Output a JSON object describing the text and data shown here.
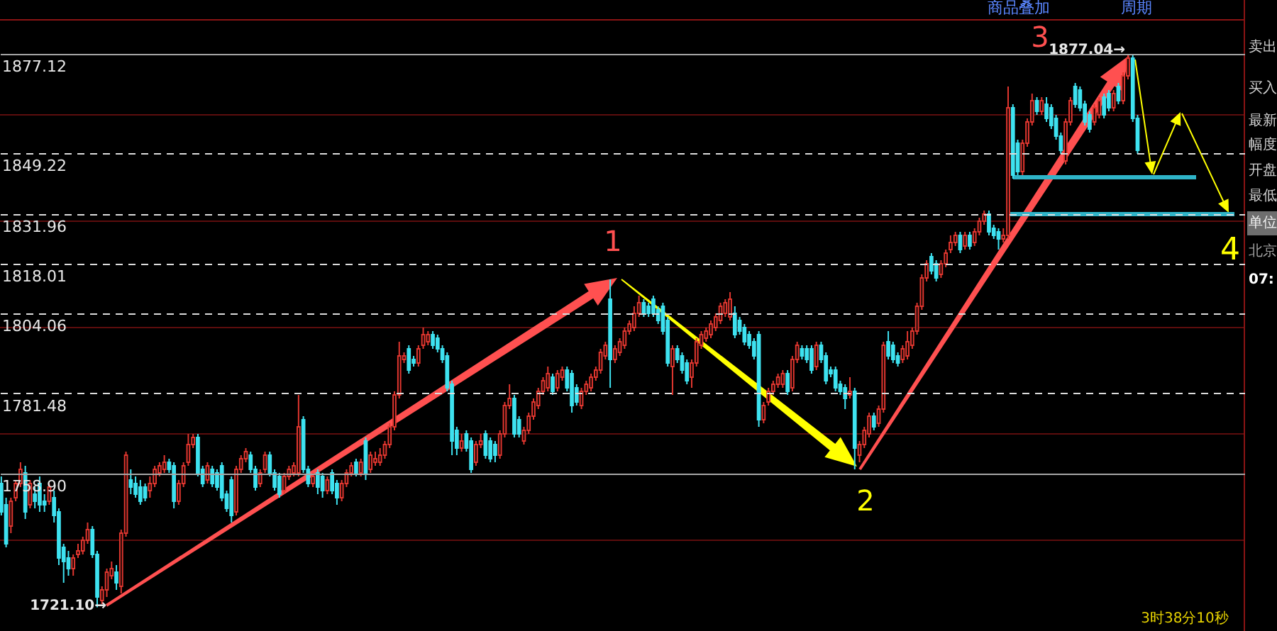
{
  "chart_data": {
    "type": "candlestick",
    "categories": [
      null,
      null,
      null,
      null,
      null,
      null,
      null,
      null,
      null,
      null,
      null,
      null,
      null,
      null,
      null,
      null,
      null,
      null,
      null,
      null,
      null,
      null,
      null,
      null,
      null,
      null,
      null,
      null,
      null,
      null,
      null,
      null,
      null,
      null,
      null,
      null,
      null,
      null,
      null,
      null,
      null,
      null,
      null,
      null,
      null,
      null,
      null,
      null,
      null,
      null,
      null,
      null,
      null,
      null,
      null,
      null,
      null,
      null,
      null,
      null,
      null,
      null,
      null,
      null,
      null,
      null,
      null,
      null,
      null,
      null,
      null,
      null,
      null,
      null,
      null,
      null,
      null,
      null,
      null,
      null,
      null,
      null,
      null,
      null,
      null,
      null,
      null,
      null,
      null,
      null,
      null,
      null,
      null,
      null,
      null,
      null,
      null,
      null,
      null,
      null,
      null,
      null,
      null,
      null,
      null,
      null,
      null,
      null,
      null,
      null,
      null,
      null,
      null,
      null,
      null,
      null,
      null,
      null,
      null,
      null,
      null,
      null,
      null,
      null,
      null,
      null,
      null,
      null,
      null,
      null,
      null,
      null,
      null,
      null,
      null,
      null,
      null,
      null,
      null,
      null,
      null,
      null,
      null,
      null,
      null,
      null,
      null,
      null,
      null,
      null,
      null,
      null,
      null,
      null,
      null,
      null,
      null,
      null,
      null,
      null,
      null,
      null,
      null,
      null,
      null,
      null,
      null,
      null,
      null,
      null,
      null,
      null,
      null,
      null,
      null,
      null,
      null,
      null,
      null,
      null,
      null,
      null,
      null,
      null,
      null,
      null,
      null,
      null,
      null,
      null,
      null,
      null,
      null,
      null,
      null,
      null,
      null,
      null,
      null,
      null,
      null,
      null,
      null,
      null,
      null,
      null,
      null,
      null,
      null,
      null,
      null,
      null,
      null,
      null,
      null,
      null,
      null,
      null,
      null,
      null,
      null,
      null,
      null,
      null,
      null,
      null,
      null,
      null,
      null,
      null,
      null,
      null,
      null,
      null,
      null,
      null,
      null,
      null,
      null,
      null,
      null,
      null,
      null,
      null,
      null,
      null,
      null,
      null,
      null,
      null,
      null,
      null,
      null,
      null,
      null,
      null,
      null,
      null,
      null,
      null
    ],
    "ohlc": [
      [
        1756,
        1758,
        1747,
        1748
      ],
      [
        1750,
        1752,
        1738,
        1739
      ],
      [
        1744,
        1752,
        1742,
        1751
      ],
      [
        1752,
        1757,
        1751,
        1756
      ],
      [
        1756,
        1762,
        1755,
        1760
      ],
      [
        1759,
        1761,
        1746,
        1748
      ],
      [
        1750,
        1757,
        1749,
        1756
      ],
      [
        1753,
        1755,
        1749,
        1751
      ],
      [
        1756,
        1758,
        1748,
        1750
      ],
      [
        1751,
        1753,
        1748,
        1750
      ],
      [
        1751,
        1756,
        1750,
        1755
      ],
      [
        1752,
        1754,
        1745,
        1747
      ],
      [
        1748,
        1749,
        1733,
        1735
      ],
      [
        1738,
        1739,
        1728,
        1734
      ],
      [
        1735,
        1737,
        1730,
        1732
      ],
      [
        1732,
        1736,
        1730,
        1735
      ],
      [
        1736,
        1739,
        1735,
        1737
      ],
      [
        1737,
        1741,
        1736,
        1740
      ],
      [
        1740,
        1745,
        1739,
        1743
      ],
      [
        1743,
        1744,
        1735,
        1736
      ],
      [
        1736,
        1737,
        1721.1,
        1724
      ],
      [
        1723,
        1727,
        1722,
        1726
      ],
      [
        1726,
        1732,
        1724,
        1731
      ],
      [
        1730,
        1734,
        1729,
        1732
      ],
      [
        1731,
        1733,
        1726,
        1728
      ],
      [
        1727,
        1743,
        1725,
        1742
      ],
      [
        1742,
        1765,
        1741,
        1764
      ],
      [
        1757,
        1760,
        1753,
        1755
      ],
      [
        1756,
        1758,
        1752,
        1753
      ],
      [
        1755,
        1757,
        1750,
        1751
      ],
      [
        1755,
        1756,
        1751,
        1752
      ],
      [
        1754,
        1758,
        1752,
        1756
      ],
      [
        1756,
        1761,
        1755,
        1760
      ],
      [
        1759,
        1762,
        1758,
        1761
      ],
      [
        1760,
        1764,
        1759,
        1762
      ],
      [
        1762,
        1763,
        1759,
        1760
      ],
      [
        1761,
        1762,
        1749,
        1751
      ],
      [
        1751,
        1757,
        1750,
        1756
      ],
      [
        1756,
        1762,
        1755,
        1761
      ],
      [
        1762,
        1770,
        1761,
        1767
      ],
      [
        1767,
        1770,
        1766,
        1769
      ],
      [
        1769,
        1770,
        1758,
        1759
      ],
      [
        1760,
        1761,
        1755,
        1756
      ],
      [
        1757,
        1762,
        1756,
        1761
      ],
      [
        1760,
        1761,
        1755,
        1756
      ],
      [
        1759,
        1760,
        1754,
        1755
      ],
      [
        1761,
        1762,
        1751,
        1752
      ],
      [
        1753,
        1754,
        1748,
        1749
      ],
      [
        1757,
        1758,
        1745,
        1747
      ],
      [
        1748,
        1761,
        1747,
        1760
      ],
      [
        1760,
        1764,
        1759,
        1763
      ],
      [
        1763,
        1766,
        1762,
        1765
      ],
      [
        1764,
        1765,
        1759,
        1760
      ],
      [
        1760,
        1761,
        1754,
        1755
      ],
      [
        1756,
        1760,
        1755,
        1759
      ],
      [
        1760,
        1765,
        1759,
        1764
      ],
      [
        1764,
        1765,
        1758,
        1759
      ],
      [
        1759,
        1760,
        1754,
        1755
      ],
      [
        1758,
        1759,
        1752,
        1753
      ],
      [
        1754,
        1759,
        1753,
        1758
      ],
      [
        1758,
        1761,
        1757,
        1760
      ],
      [
        1759,
        1762,
        1758,
        1761
      ],
      [
        1759,
        1781,
        1758,
        1772
      ],
      [
        1774,
        1775,
        1759,
        1760
      ],
      [
        1760,
        1761,
        1755,
        1756
      ],
      [
        1756,
        1759,
        1755,
        1758
      ],
      [
        1759,
        1760,
        1753,
        1755
      ],
      [
        1758,
        1759,
        1752,
        1754
      ],
      [
        1754,
        1758,
        1753,
        1757
      ],
      [
        1759,
        1760,
        1753,
        1754
      ],
      [
        1756,
        1757,
        1750,
        1752
      ],
      [
        1752,
        1757,
        1751,
        1756
      ],
      [
        1756,
        1760,
        1755,
        1759
      ],
      [
        1759,
        1762,
        1758,
        1761
      ],
      [
        1762,
        1763,
        1758,
        1759
      ],
      [
        1759,
        1763,
        1758,
        1762
      ],
      [
        1768,
        1769,
        1757,
        1759
      ],
      [
        1760,
        1765,
        1759,
        1764
      ],
      [
        1762,
        1765,
        1761,
        1763
      ],
      [
        1762,
        1766,
        1761,
        1764
      ],
      [
        1764,
        1768,
        1763,
        1767
      ],
      [
        1767,
        1773,
        1766,
        1772
      ],
      [
        1772,
        1782,
        1771,
        1781
      ],
      [
        1781,
        1796,
        1780,
        1792
      ],
      [
        1791,
        1793,
        1790,
        1792
      ],
      [
        1794,
        1795,
        1787,
        1788
      ],
      [
        1791,
        1792,
        1789,
        1790
      ],
      [
        1790,
        1795,
        1789,
        1794
      ],
      [
        1795,
        1800,
        1794,
        1798
      ],
      [
        1796,
        1799,
        1795,
        1798
      ],
      [
        1798,
        1799,
        1794,
        1795
      ],
      [
        1797,
        1798,
        1793,
        1794
      ],
      [
        1794,
        1795,
        1790,
        1791
      ],
      [
        1792,
        1793,
        1782,
        1783
      ],
      [
        1784,
        1785,
        1764,
        1768
      ],
      [
        1771,
        1772,
        1764,
        1766
      ],
      [
        1766,
        1770,
        1765,
        1768
      ],
      [
        1770,
        1771,
        1765,
        1766
      ],
      [
        1768,
        1769,
        1759,
        1760
      ],
      [
        1762,
        1768,
        1761,
        1767
      ],
      [
        1767,
        1770,
        1766,
        1768
      ],
      [
        1770,
        1771,
        1763,
        1764
      ],
      [
        1768,
        1769,
        1762,
        1763
      ],
      [
        1767,
        1768,
        1762,
        1764
      ],
      [
        1764,
        1771,
        1763,
        1770
      ],
      [
        1770,
        1779,
        1769,
        1778
      ],
      [
        1778,
        1784,
        1777,
        1780
      ],
      [
        1780,
        1781,
        1769,
        1770
      ],
      [
        1774,
        1775,
        1769,
        1770
      ],
      [
        1768,
        1772,
        1767,
        1771
      ],
      [
        1771,
        1776,
        1770,
        1775
      ],
      [
        1775,
        1780,
        1774,
        1779
      ],
      [
        1778,
        1783,
        1777,
        1782
      ],
      [
        1782,
        1786,
        1781,
        1785
      ],
      [
        1783,
        1789,
        1782,
        1787
      ],
      [
        1786,
        1787,
        1781,
        1782
      ],
      [
        1783,
        1788,
        1782,
        1787
      ],
      [
        1786,
        1789,
        1785,
        1788
      ],
      [
        1788,
        1789,
        1782,
        1783
      ],
      [
        1787,
        1788,
        1776,
        1778
      ],
      [
        1783,
        1784,
        1778,
        1779
      ],
      [
        1778,
        1783,
        1777,
        1782
      ],
      [
        1782,
        1785,
        1781,
        1784
      ],
      [
        1783,
        1787,
        1782,
        1786
      ],
      [
        1786,
        1789,
        1785,
        1788
      ],
      [
        1788,
        1794,
        1787,
        1793
      ],
      [
        1792,
        1796,
        1791,
        1795
      ],
      [
        1808,
        1813.6,
        1783,
        1791
      ],
      [
        1791,
        1795,
        1790,
        1794
      ],
      [
        1793,
        1797,
        1792,
        1796
      ],
      [
        1795,
        1800,
        1794,
        1799
      ],
      [
        1799,
        1802,
        1798,
        1801
      ],
      [
        1800,
        1806,
        1799,
        1804
      ],
      [
        1804,
        1809,
        1803,
        1807
      ],
      [
        1807,
        1808,
        1803,
        1804
      ],
      [
        1806,
        1807,
        1803,
        1804
      ],
      [
        1808,
        1809,
        1803,
        1804
      ],
      [
        1805,
        1806,
        1801,
        1802
      ],
      [
        1806,
        1807,
        1798,
        1799
      ],
      [
        1802,
        1803,
        1789,
        1790
      ],
      [
        1789,
        1795,
        1781,
        1794
      ],
      [
        1794,
        1795,
        1790,
        1791
      ],
      [
        1792,
        1793,
        1787,
        1788
      ],
      [
        1790,
        1791,
        1784,
        1785
      ],
      [
        1786,
        1791,
        1783,
        1790
      ],
      [
        1790,
        1797,
        1789,
        1796
      ],
      [
        1795,
        1799,
        1794,
        1798
      ],
      [
        1797,
        1800,
        1796,
        1799
      ],
      [
        1798,
        1802,
        1797,
        1801
      ],
      [
        1800,
        1804,
        1799,
        1803
      ],
      [
        1802,
        1807,
        1801,
        1806
      ],
      [
        1804,
        1808,
        1803,
        1807
      ],
      [
        1803,
        1810,
        1802,
        1808
      ],
      [
        1804,
        1806,
        1797,
        1798
      ],
      [
        1802,
        1803,
        1798,
        1799
      ],
      [
        1800,
        1801,
        1795,
        1796
      ],
      [
        1798,
        1799,
        1794,
        1795
      ],
      [
        1796,
        1797,
        1791,
        1792
      ],
      [
        1798,
        1799,
        1772,
        1774
      ],
      [
        1774,
        1779,
        1773,
        1778
      ],
      [
        1779,
        1783,
        1778,
        1782
      ],
      [
        1782,
        1785,
        1781,
        1784
      ],
      [
        1784,
        1787,
        1783,
        1786
      ],
      [
        1784,
        1788,
        1783,
        1787
      ],
      [
        1787,
        1788,
        1781,
        1782
      ],
      [
        1783,
        1792,
        1782,
        1791
      ],
      [
        1791,
        1796,
        1790,
        1795
      ],
      [
        1794,
        1795,
        1791,
        1792
      ],
      [
        1794,
        1795,
        1790,
        1791
      ],
      [
        1794,
        1795,
        1787,
        1788
      ],
      [
        1789,
        1796,
        1788,
        1795
      ],
      [
        1795,
        1796,
        1790,
        1791
      ],
      [
        1792,
        1793,
        1784,
        1785
      ],
      [
        1788,
        1789,
        1786,
        1787
      ],
      [
        1788,
        1789,
        1782,
        1783
      ],
      [
        1784,
        1785,
        1781,
        1782
      ],
      [
        1783,
        1784,
        1777,
        1780
      ],
      [
        1781,
        1786,
        1780,
        1782
      ],
      [
        1782,
        1783,
        1760,
        1766
      ],
      [
        1764,
        1768,
        1762,
        1767
      ],
      [
        1767,
        1772,
        1766,
        1771
      ],
      [
        1770,
        1776,
        1769,
        1775
      ],
      [
        1775,
        1776,
        1771,
        1772
      ],
      [
        1773,
        1778,
        1772,
        1777
      ],
      [
        1777,
        1796,
        1776,
        1795
      ],
      [
        1796,
        1799,
        1791,
        1792
      ],
      [
        1795,
        1796,
        1790,
        1791
      ],
      [
        1792,
        1793,
        1789,
        1790
      ],
      [
        1791,
        1795,
        1790,
        1794
      ],
      [
        1792,
        1799,
        1791,
        1796
      ],
      [
        1795,
        1800,
        1794,
        1799
      ],
      [
        1799,
        1807,
        1798,
        1806
      ],
      [
        1806,
        1815,
        1805,
        1814
      ],
      [
        1814,
        1819,
        1813,
        1818
      ],
      [
        1820,
        1821,
        1815,
        1816
      ],
      [
        1818,
        1819,
        1813,
        1814
      ],
      [
        1815,
        1819,
        1814,
        1818
      ],
      [
        1818,
        1822,
        1817,
        1821
      ],
      [
        1822,
        1826,
        1821,
        1824
      ],
      [
        1824,
        1827,
        1823,
        1826
      ],
      [
        1826,
        1827,
        1821,
        1822
      ],
      [
        1823,
        1827,
        1822,
        1826
      ],
      [
        1826,
        1827,
        1822,
        1823
      ],
      [
        1824,
        1828,
        1823,
        1827
      ],
      [
        1827,
        1831,
        1826,
        1830
      ],
      [
        1830,
        1833,
        1829,
        1832
      ],
      [
        1832,
        1833,
        1826,
        1827
      ],
      [
        1828,
        1829,
        1825,
        1826
      ],
      [
        1827,
        1828,
        1822,
        1825
      ],
      [
        1825,
        1828,
        1824,
        1826
      ],
      [
        1826,
        1868,
        1825,
        1862
      ],
      [
        1862,
        1863,
        1842,
        1843
      ],
      [
        1852,
        1853,
        1843,
        1844
      ],
      [
        1844,
        1853,
        1843,
        1852
      ],
      [
        1852,
        1859,
        1851,
        1858
      ],
      [
        1858,
        1866,
        1857,
        1864
      ],
      [
        1864,
        1865,
        1860,
        1861
      ],
      [
        1861,
        1865,
        1860,
        1864
      ],
      [
        1863,
        1865,
        1858,
        1859
      ],
      [
        1862,
        1863,
        1856,
        1857
      ],
      [
        1859,
        1860,
        1853,
        1854
      ],
      [
        1854,
        1855,
        1849,
        1850
      ],
      [
        1847,
        1859,
        1846,
        1858
      ],
      [
        1858,
        1865,
        1857,
        1864
      ],
      [
        1868,
        1869,
        1862,
        1863
      ],
      [
        1867,
        1868,
        1861,
        1862
      ],
      [
        1863,
        1864,
        1857,
        1858
      ],
      [
        1860,
        1861,
        1855,
        1856
      ],
      [
        1858,
        1863,
        1857,
        1862
      ],
      [
        1860,
        1865,
        1859,
        1864
      ],
      [
        1865,
        1866,
        1859,
        1860
      ],
      [
        1866,
        1867,
        1861,
        1862
      ],
      [
        1862,
        1867,
        1861,
        1866
      ],
      [
        1868,
        1869,
        1863,
        1864
      ],
      [
        1864,
        1872,
        1863,
        1871
      ],
      [
        1871,
        1877.04,
        1870,
        1876
      ],
      [
        1876,
        1877,
        1858,
        1859
      ],
      [
        1859,
        1860,
        1849,
        1850
      ],
      null,
      null,
      null,
      null,
      null,
      null,
      null,
      null,
      null,
      null,
      null,
      null,
      null,
      null,
      null,
      null,
      null,
      null,
      null,
      null,
      null,
      null
    ],
    "colors": [
      "#3ee2f0",
      "#3ee2f0",
      "#e0362f",
      "#e0362f",
      "#e0362f",
      "#3ee2f0",
      "#e0362f",
      "#3ee2f0",
      "#3ee2f0",
      "#3ee2f0",
      "#e0362f",
      "#3ee2f0",
      "#3ee2f0",
      "#3ee2f0",
      "#3ee2f0",
      "#e0362f",
      "#e0362f",
      "#e0362f",
      "#e0362f",
      "#3ee2f0",
      "#3ee2f0",
      "#e0362f",
      "#e0362f",
      "#e0362f",
      "#3ee2f0",
      "#e0362f",
      "#e0362f",
      "#3ee2f0",
      "#3ee2f0",
      "#3ee2f0",
      "#3ee2f0",
      "#e0362f",
      "#e0362f",
      "#e0362f",
      "#e0362f",
      "#3ee2f0",
      "#3ee2f0",
      "#e0362f",
      "#e0362f",
      "#e0362f",
      "#e0362f",
      "#3ee2f0",
      "#3ee2f0",
      "#e0362f",
      "#3ee2f0",
      "#3ee2f0",
      "#3ee2f0",
      "#3ee2f0",
      "#3ee2f0",
      "#e0362f",
      "#e0362f",
      "#e0362f",
      "#3ee2f0",
      "#3ee2f0",
      "#e0362f",
      "#e0362f",
      "#3ee2f0",
      "#3ee2f0",
      "#3ee2f0",
      "#e0362f",
      "#e0362f",
      "#e0362f",
      "#e0362f",
      "#3ee2f0",
      "#3ee2f0",
      "#e0362f",
      "#3ee2f0",
      "#3ee2f0",
      "#e0362f",
      "#3ee2f0",
      "#3ee2f0",
      "#e0362f",
      "#e0362f",
      "#e0362f",
      "#3ee2f0",
      "#e0362f",
      "#3ee2f0",
      "#e0362f",
      "#e0362f",
      "#e0362f",
      "#e0362f",
      "#e0362f",
      "#e0362f",
      "#e0362f",
      "#e0362f",
      "#3ee2f0",
      "#3ee2f0",
      "#e0362f",
      "#e0362f",
      "#e0362f",
      "#3ee2f0",
      "#3ee2f0",
      "#3ee2f0",
      "#3ee2f0",
      "#3ee2f0",
      "#3ee2f0",
      "#e0362f",
      "#3ee2f0",
      "#3ee2f0",
      "#e0362f",
      "#e0362f",
      "#3ee2f0",
      "#3ee2f0",
      "#3ee2f0",
      "#e0362f",
      "#e0362f",
      "#e0362f",
      "#3ee2f0",
      "#3ee2f0",
      "#e0362f",
      "#e0362f",
      "#e0362f",
      "#e0362f",
      "#e0362f",
      "#e0362f",
      "#3ee2f0",
      "#e0362f",
      "#e0362f",
      "#3ee2f0",
      "#3ee2f0",
      "#3ee2f0",
      "#e0362f",
      "#e0362f",
      "#e0362f",
      "#e0362f",
      "#e0362f",
      "#e0362f",
      "#3ee2f0",
      "#e0362f",
      "#e0362f",
      "#e0362f",
      "#e0362f",
      "#e0362f",
      "#e0362f",
      "#3ee2f0",
      "#3ee2f0",
      "#3ee2f0",
      "#3ee2f0",
      "#3ee2f0",
      "#3ee2f0",
      "#e0362f",
      "#3ee2f0",
      "#3ee2f0",
      "#3ee2f0",
      "#e0362f",
      "#e0362f",
      "#e0362f",
      "#e0362f",
      "#e0362f",
      "#e0362f",
      "#e0362f",
      "#e0362f",
      "#e0362f",
      "#3ee2f0",
      "#3ee2f0",
      "#3ee2f0",
      "#3ee2f0",
      "#3ee2f0",
      "#3ee2f0",
      "#e0362f",
      "#e0362f",
      "#e0362f",
      "#e0362f",
      "#e0362f",
      "#3ee2f0",
      "#e0362f",
      "#e0362f",
      "#3ee2f0",
      "#3ee2f0",
      "#3ee2f0",
      "#e0362f",
      "#3ee2f0",
      "#3ee2f0",
      "#3ee2f0",
      "#3ee2f0",
      "#3ee2f0",
      "#3ee2f0",
      "#e0362f",
      "#3ee2f0",
      "#e0362f",
      "#e0362f",
      "#e0362f",
      "#3ee2f0",
      "#e0362f",
      "#e0362f",
      "#3ee2f0",
      "#3ee2f0",
      "#3ee2f0",
      "#e0362f",
      "#e0362f",
      "#e0362f",
      "#e0362f",
      "#e0362f",
      "#e0362f",
      "#3ee2f0",
      "#3ee2f0",
      "#e0362f",
      "#e0362f",
      "#e0362f",
      "#e0362f",
      "#3ee2f0",
      "#e0362f",
      "#3ee2f0",
      "#e0362f",
      "#e0362f",
      "#e0362f",
      "#3ee2f0",
      "#3ee2f0",
      "#3ee2f0",
      "#e0362f",
      "#e0362f",
      "#3ee2f0",
      "#3ee2f0",
      "#e0362f",
      "#e0362f",
      "#e0362f",
      "#3ee2f0",
      "#e0362f",
      "#3ee2f0",
      "#3ee2f0",
      "#3ee2f0",
      "#3ee2f0",
      "#e0362f",
      "#e0362f",
      "#3ee2f0",
      "#3ee2f0",
      "#3ee2f0",
      "#3ee2f0",
      "#e0362f",
      "#e0362f",
      "#3ee2f0",
      "#3ee2f0",
      "#e0362f",
      "#3ee2f0",
      "#e0362f",
      "#e0362f",
      "#3ee2f0",
      "#3ee2f0",
      null,
      null,
      null,
      null,
      null,
      null,
      null,
      null,
      null,
      null,
      null,
      null,
      null,
      null,
      null,
      null,
      null,
      null,
      null,
      null,
      null,
      null
    ],
    "ylim": [
      1714.4,
      1886.8
    ],
    "yticks": [
      {
        "value": 1758.9,
        "label": "1758.90"
      },
      1781.48,
      1804.06,
      1818.01,
      1831.96,
      1849.22,
      1877.12
    ],
    "grid": "y",
    "tick_labels": "y",
    "ref_lines": [
      {
        "axis": "y",
        "value": 1740,
        "color": "#5c0d0d",
        "line_style": "solid"
      },
      {
        "axis": "y",
        "value": 1770,
        "color": "#5c0d0d",
        "line_style": "solid"
      },
      {
        "axis": "y",
        "value": 1800,
        "color": "#5c0d0d",
        "line_style": "solid"
      },
      {
        "axis": "y",
        "value": 1830,
        "color": "#5c0d0d",
        "line_style": "solid"
      },
      {
        "axis": "y",
        "value": 1860,
        "color": "#5c0d0d",
        "line_style": "solid"
      },
      {
        "axis": "y",
        "value": 1842.4,
        "color": "#2fb4c8",
        "line_style": "solid"
      },
      {
        "axis": "y",
        "value": 1832,
        "color": "#2fb4c8",
        "line_style": "solid"
      }
    ],
    "annotations": [
      "1",
      "2",
      "3",
      "4",
      "1721.10→",
      "1877.04→",
      "商品叠加",
      "周期",
      "卖出",
      "买入",
      "最新",
      "幅度",
      "开盘",
      "最低",
      "单位",
      "北京",
      "07:",
      "3时38分10秒"
    ]
  }
}
